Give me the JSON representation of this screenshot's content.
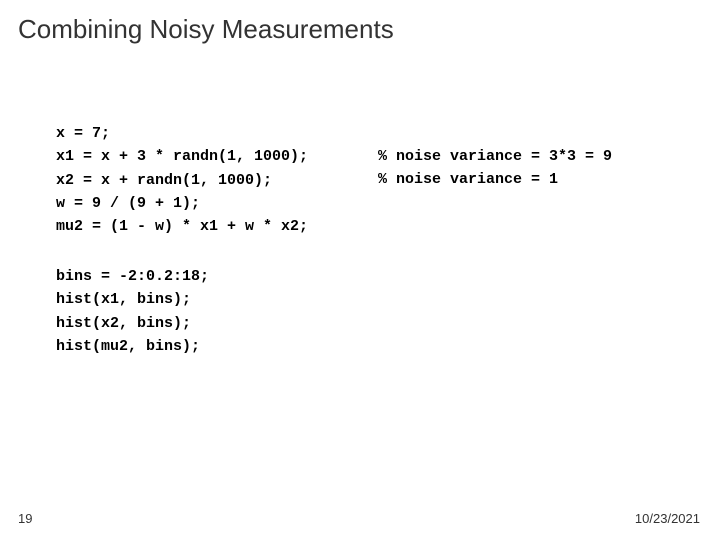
{
  "title": "Combining Noisy Measurements",
  "code1": "x = 7;\nx1 = x + 3 * randn(1, 1000);\nx2 = x + randn(1, 1000);\nw = 9 / (9 + 1);\nmu2 = (1 - w) * x1 + w * x2;",
  "comments": "% noise variance = 3*3 = 9\n% noise variance = 1",
  "code2": "bins = -2:0.2:18;\nhist(x1, bins);\nhist(x2, bins);\nhist(mu2, bins);",
  "pageNumber": "19",
  "date": "10/23/2021",
  "colors": {
    "background": "#ffffff",
    "titleText": "#333333",
    "codeText": "#000000",
    "footerText": "#333333"
  },
  "fonts": {
    "titleSize": 26,
    "codeSize": 15,
    "footerSize": 13
  }
}
